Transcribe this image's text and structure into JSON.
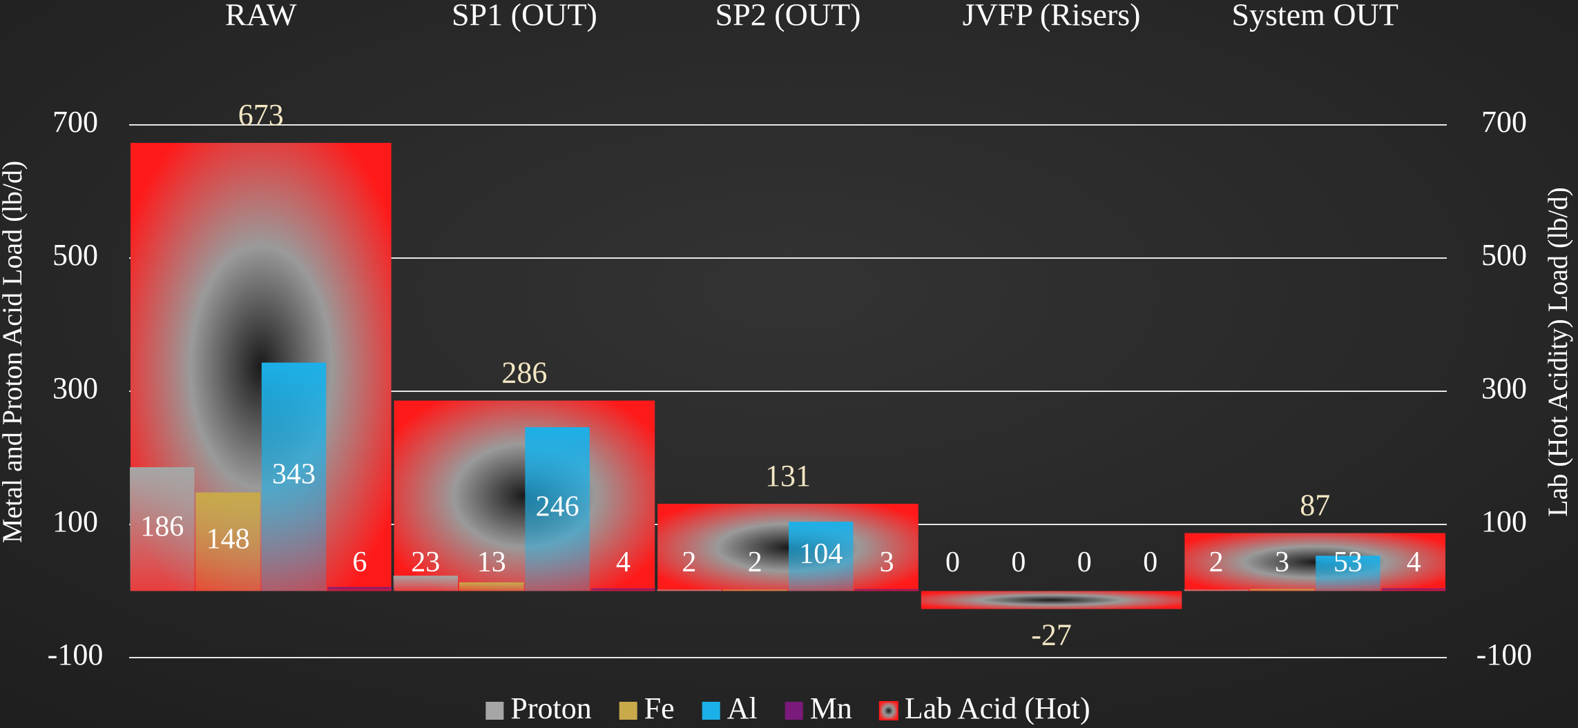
{
  "chart_data": {
    "type": "bar",
    "categories": [
      "RAW",
      "SP1 (OUT)",
      "SP2 (OUT)",
      "JVFP (Risers)",
      "System OUT"
    ],
    "series": [
      {
        "name": "Proton",
        "color": "#a6a6a6",
        "values": [
          186,
          23,
          2,
          0,
          2
        ]
      },
      {
        "name": "Fe",
        "color": "#c9a94a",
        "values": [
          148,
          13,
          2,
          0,
          3
        ]
      },
      {
        "name": "Al",
        "color": "#1cb0e8",
        "values": [
          343,
          246,
          104,
          0,
          53
        ]
      },
      {
        "name": "Mn",
        "color": "#7a1a7a",
        "values": [
          6,
          4,
          3,
          0,
          4
        ]
      },
      {
        "name": "Lab Acid (Hot)",
        "color": "#ff1a1a",
        "axis": "y2",
        "values": [
          673,
          286,
          131,
          -27,
          87
        ]
      }
    ],
    "y_label": "Metal and Proton Acid Load (lb/d)",
    "y2_label": "Lab (Hot Acidity) Load (lb/d)",
    "ylim": [
      -100,
      700
    ],
    "yticks": [
      -100,
      100,
      300,
      500,
      700
    ],
    "y2lim": [
      -100,
      700
    ],
    "y2ticks": [
      -100,
      100,
      300,
      500,
      700
    ],
    "grid": true,
    "legend": "bottom"
  }
}
